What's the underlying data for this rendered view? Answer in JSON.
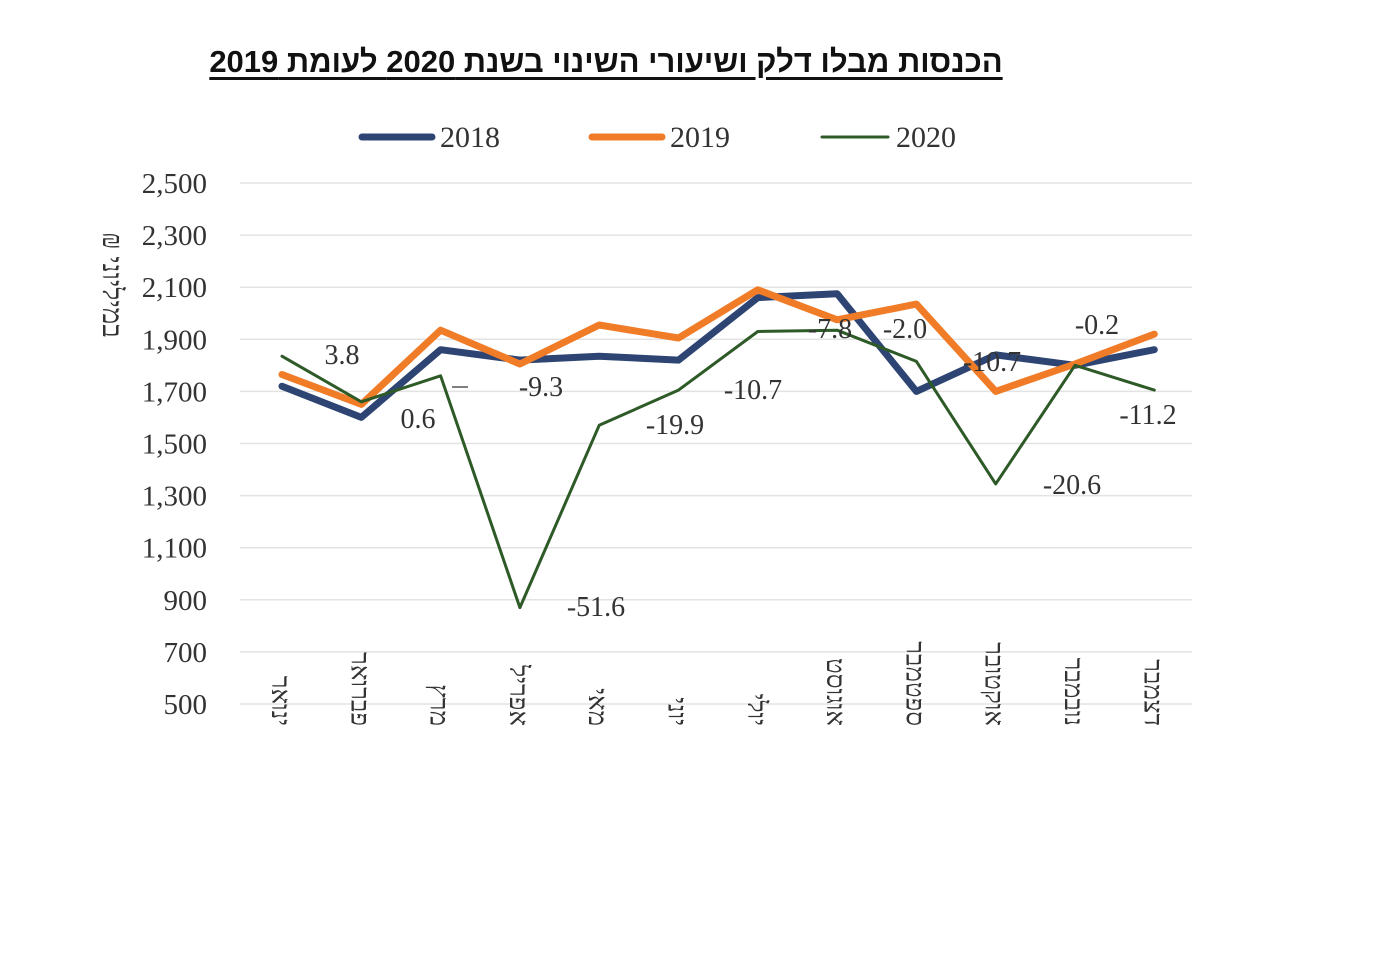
{
  "chart_data": {
    "type": "line",
    "title": "הכנסות מבלו דלק ושיעורי השינוי בשנת 2020 לעומת 2019",
    "ylabel": "במיליוני ₪",
    "xlabel": "",
    "ylim": [
      500,
      2500
    ],
    "yticks": [
      500,
      700,
      900,
      1100,
      1300,
      1500,
      1700,
      1900,
      2100,
      2300,
      2500
    ],
    "ytick_labels": [
      "500",
      "700",
      "900",
      "1,100",
      "1,300",
      "1,500",
      "1,700",
      "1,900",
      "2,100",
      "2,300",
      "2,500"
    ],
    "grid": true,
    "legend_position": "top",
    "categories": [
      "ינואר",
      "פברואר",
      "מרץ",
      "אפריל",
      "מאי",
      "יוני",
      "יולי",
      "אוגוסט",
      "ספטמבר",
      "אוקטובר",
      "נובמבר",
      "דצמבר"
    ],
    "series": [
      {
        "name": "2018",
        "color": "#2e4574",
        "values": [
          1720,
          1600,
          1860,
          1820,
          1835,
          1820,
          2060,
          2075,
          1700,
          1840,
          1800,
          1860
        ]
      },
      {
        "name": "2019",
        "color": "#f07c28",
        "values": [
          1765,
          1650,
          1935,
          1805,
          1955,
          1905,
          2090,
          1975,
          2035,
          1700,
          1805,
          1920
        ]
      },
      {
        "name": "2020",
        "color": "#2d5a27",
        "values": [
          1835,
          1660,
          1760,
          870,
          1570,
          1705,
          1930,
          1935,
          1815,
          1345,
          1800,
          1705
        ]
      }
    ],
    "data_labels": [
      "3.8",
      "0.6",
      "-9.3",
      "-51.6",
      "-19.9",
      "-10.7",
      "-7.8",
      "-2.0",
      "-10.7",
      "-20.6",
      "-0.2",
      "-11.2"
    ]
  }
}
